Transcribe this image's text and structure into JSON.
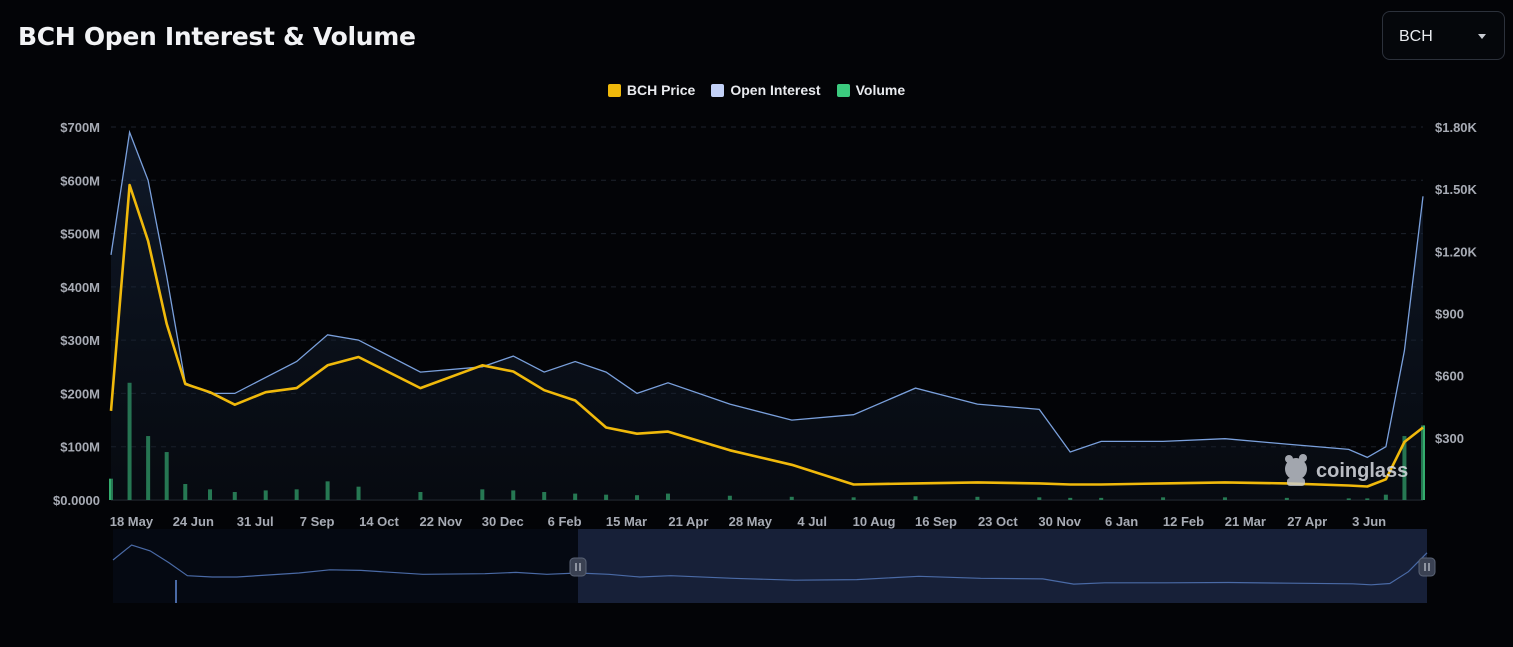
{
  "header": {
    "title": "BCH Open Interest & Volume"
  },
  "selector": {
    "value": "BCH"
  },
  "legend": [
    {
      "label": "BCH Price",
      "color": "#f0b90b"
    },
    {
      "label": "Open Interest",
      "color": "#c3d1f7"
    },
    {
      "label": "Volume",
      "color": "#3ccb7f"
    }
  ],
  "watermark": "coinglass",
  "chart_data": {
    "type": "line",
    "title": "BCH Open Interest & Volume",
    "x_tick_labels": [
      "18 May",
      "24 Jun",
      "31 Jul",
      "7 Sep",
      "14 Oct",
      "22 Nov",
      "30 Dec",
      "6 Feb",
      "15 Mar",
      "21 Apr",
      "28 May",
      "4 Jul",
      "10 Aug",
      "16 Sep",
      "23 Oct",
      "30 Nov",
      "6 Jan",
      "12 Feb",
      "21 Mar",
      "27 Apr",
      "3 Jun"
    ],
    "y_left_ticks": [
      "$0.0000",
      "$100M",
      "$200M",
      "$300M",
      "$400M",
      "$500M",
      "$600M",
      "$700M"
    ],
    "y_right_ticks": [
      "$300",
      "$600",
      "$900",
      "$1.20K",
      "$1.50K",
      "$1.80K"
    ],
    "y_left_range": [
      0,
      700000000
    ],
    "y_right_range": [
      0,
      1800
    ],
    "grid": true,
    "legend_position": "top-center",
    "x_positions": [
      0,
      0.3,
      0.6,
      0.9,
      1.2,
      1.6,
      2.0,
      2.5,
      3.0,
      3.5,
      4.0,
      5.0,
      6.0,
      6.5,
      7.0,
      7.5,
      8.0,
      8.5,
      9.0,
      10.0,
      11.0,
      12.0,
      13.0,
      14.0,
      15.0,
      15.5,
      16.0,
      17.0,
      18.0,
      19.0,
      20.0,
      20.3,
      20.6,
      20.9,
      21.2
    ],
    "series": [
      {
        "name": "Open Interest",
        "axis": "left",
        "color": "#7aa0dc",
        "values": [
          460000000,
          690000000,
          600000000,
          420000000,
          220000000,
          200000000,
          200000000,
          230000000,
          260000000,
          310000000,
          300000000,
          240000000,
          250000000,
          270000000,
          240000000,
          260000000,
          240000000,
          200000000,
          220000000,
          180000000,
          150000000,
          160000000,
          210000000,
          180000000,
          170000000,
          90000000,
          110000000,
          110000000,
          115000000,
          105000000,
          95000000,
          80000000,
          100000000,
          280000000,
          570000000
        ]
      },
      {
        "name": "BCH Price",
        "axis": "right",
        "color": "#f0b90b",
        "values": [
          430,
          1520,
          1250,
          850,
          560,
          520,
          460,
          520,
          540,
          650,
          690,
          540,
          650,
          620,
          530,
          480,
          350,
          320,
          330,
          240,
          170,
          75,
          80,
          85,
          80,
          75,
          75,
          80,
          85,
          80,
          70,
          65,
          100,
          280,
          350
        ]
      },
      {
        "name": "Volume",
        "axis": "left",
        "color": "#3ccb7f",
        "values": [
          40000000,
          220000000,
          120000000,
          90000000,
          30000000,
          20000000,
          15000000,
          18000000,
          20000000,
          35000000,
          25000000,
          15000000,
          20000000,
          18000000,
          15000000,
          12000000,
          10000000,
          9000000,
          12000000,
          8000000,
          6000000,
          5000000,
          7000000,
          6000000,
          5000000,
          4000000,
          4000000,
          5000000,
          5000000,
          4000000,
          3000000,
          3000000,
          10000000,
          120000000,
          140000000
        ]
      }
    ]
  }
}
